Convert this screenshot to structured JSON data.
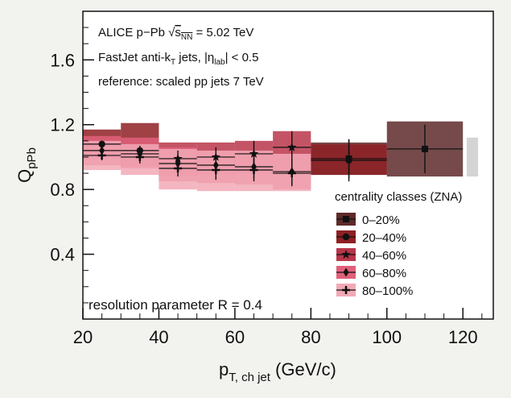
{
  "chart_data": {
    "type": "scatter",
    "annotations": {
      "line1": {
        "prefix": "ALICE p−Pb ",
        "sqrt": "√",
        "s": "s",
        "sub": "NN",
        "suffix": " = 5.02 TeV"
      },
      "line2": {
        "prefix": "FastJet anti-k",
        "k_sub": "T",
        "mid": " jets, |η",
        "eta_sub": "lab",
        "suffix": "| < 0.5"
      },
      "line3": "reference: scaled pp jets 7 TeV",
      "resolution": "resolution parameter R = 0.4"
    },
    "ylabel": {
      "main": "Q",
      "sub": "pPb"
    },
    "xlabel": {
      "main": "p",
      "sub": "T, ch jet",
      "unit": " (GeV/c)"
    },
    "xlim": [
      20,
      128
    ],
    "ylim": [
      0.0,
      1.9
    ],
    "xticks": [
      20,
      40,
      60,
      80,
      100,
      120
    ],
    "yticks": [
      0.4,
      0.8,
      1.2,
      1.6
    ],
    "xtick_labels": [
      "20",
      "40",
      "60",
      "80",
      "100",
      "120"
    ],
    "ytick_labels": [
      "0.4",
      "0.8",
      "1.2",
      "1.6"
    ],
    "legend": {
      "title": "centrality classes (ZNA)",
      "position": "bottom-right"
    },
    "series": [
      {
        "name": "0–20%",
        "color": "#5e2a2a",
        "marker": "square",
        "points": [
          {
            "x": 90,
            "y": 0.99,
            "xlo": 80,
            "xhi": 100,
            "err": 0.12,
            "syslo": 0.89,
            "syshi": 1.09
          },
          {
            "x": 110,
            "y": 1.05,
            "xlo": 100,
            "xhi": 120,
            "err": 0.15,
            "syslo": 0.88,
            "syshi": 1.22
          }
        ]
      },
      {
        "name": "20–40%",
        "color": "#8e2024",
        "marker": "circle",
        "points": [
          {
            "x": 25,
            "y": 1.08,
            "xlo": 20,
            "xhi": 30,
            "err": 0.02,
            "syslo": 0.99,
            "syshi": 1.17
          },
          {
            "x": 35,
            "y": 1.04,
            "xlo": 30,
            "xhi": 40,
            "err": 0.03,
            "syslo": 0.94,
            "syshi": 1.21
          },
          {
            "x": 90,
            "y": 0.98,
            "xlo": 80,
            "xhi": 100,
            "err": 0.13,
            "syslo": 0.89,
            "syshi": 1.08
          }
        ]
      },
      {
        "name": "40–60%",
        "color": "#b8364a",
        "marker": "star",
        "points": [
          {
            "x": 45,
            "y": 0.99,
            "xlo": 40,
            "xhi": 50,
            "err": 0.05,
            "syslo": 0.88,
            "syshi": 1.09
          },
          {
            "x": 55,
            "y": 1.0,
            "xlo": 50,
            "xhi": 60,
            "err": 0.06,
            "syslo": 0.89,
            "syshi": 1.09
          },
          {
            "x": 65,
            "y": 1.02,
            "xlo": 60,
            "xhi": 70,
            "err": 0.08,
            "syslo": 0.9,
            "syshi": 1.1
          },
          {
            "x": 75,
            "y": 1.06,
            "xlo": 70,
            "xhi": 80,
            "err": 0.1,
            "syslo": 0.9,
            "syshi": 1.16
          }
        ]
      },
      {
        "name": "60–80%",
        "color": "#e0607a",
        "marker": "diamond",
        "points": [
          {
            "x": 25,
            "y": 1.04,
            "xlo": 20,
            "xhi": 30,
            "err": 0.03,
            "syslo": 0.95,
            "syshi": 1.13
          },
          {
            "x": 35,
            "y": 1.02,
            "xlo": 30,
            "xhi": 40,
            "err": 0.04,
            "syslo": 0.93,
            "syshi": 1.12
          },
          {
            "x": 45,
            "y": 0.96,
            "xlo": 40,
            "xhi": 50,
            "err": 0.05,
            "syslo": 0.85,
            "syshi": 1.06
          },
          {
            "x": 55,
            "y": 0.95,
            "xlo": 50,
            "xhi": 60,
            "err": 0.06,
            "syslo": 0.84,
            "syshi": 1.04
          },
          {
            "x": 65,
            "y": 0.94,
            "xlo": 60,
            "xhi": 70,
            "err": 0.07,
            "syslo": 0.83,
            "syshi": 1.03
          },
          {
            "x": 75,
            "y": 0.91,
            "xlo": 70,
            "xhi": 80,
            "err": 0.08,
            "syslo": 0.8,
            "syshi": 1.02
          }
        ]
      },
      {
        "name": "80–100%",
        "color": "#f2a9b6",
        "marker": "cross",
        "points": [
          {
            "x": 25,
            "y": 1.01,
            "xlo": 20,
            "xhi": 30,
            "err": 0.03,
            "syslo": 0.92,
            "syshi": 1.1
          },
          {
            "x": 35,
            "y": 1.0,
            "xlo": 30,
            "xhi": 40,
            "err": 0.04,
            "syslo": 0.89,
            "syshi": 1.08
          },
          {
            "x": 45,
            "y": 0.93,
            "xlo": 40,
            "xhi": 50,
            "err": 0.05,
            "syslo": 0.8,
            "syshi": 1.05
          },
          {
            "x": 55,
            "y": 0.92,
            "xlo": 50,
            "xhi": 60,
            "err": 0.06,
            "syslo": 0.79,
            "syshi": 1.04
          },
          {
            "x": 65,
            "y": 0.92,
            "xlo": 60,
            "xhi": 70,
            "err": 0.07,
            "syslo": 0.79,
            "syshi": 1.04
          },
          {
            "x": 75,
            "y": 0.9,
            "xlo": 70,
            "xhi": 80,
            "err": 0.08,
            "syslo": 0.79,
            "syshi": 1.02
          }
        ]
      }
    ],
    "normalization_band": {
      "x": [
        121,
        124
      ],
      "y": [
        0.88,
        1.12
      ],
      "color": "#d4d4d4"
    }
  }
}
